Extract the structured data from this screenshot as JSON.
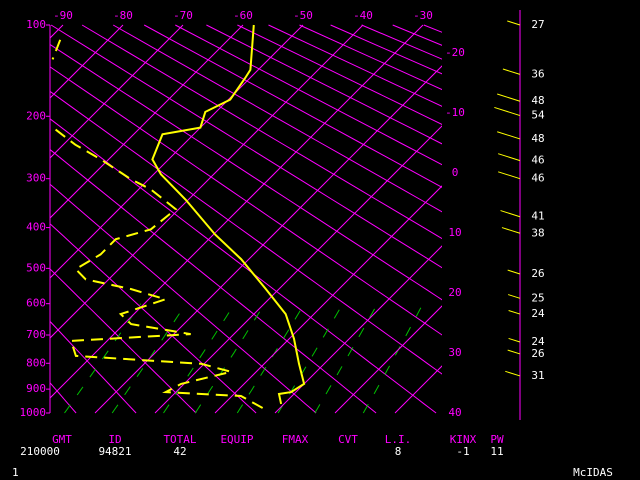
{
  "chart_data": {
    "type": "skewt",
    "ylim": [
      1000,
      100
    ],
    "yticks": [
      100,
      200,
      300,
      400,
      500,
      600,
      700,
      800,
      900,
      1000
    ],
    "xticks": [
      -90,
      -80,
      -70,
      -60,
      -50,
      -40,
      -30,
      -20,
      -10,
      0,
      10,
      20,
      30,
      40
    ],
    "axis_color": "#ff00ff",
    "series": [
      {
        "color": "#ffff00",
        "dashed": false,
        "pressure": [
          100,
          143,
          152,
          178,
          194,
          216,
          226,
          266,
          292,
          340,
          416,
          476,
          557,
          632,
          713,
          802,
          879,
          912,
          920,
          961
        ],
        "values": [
          -58.2,
          -51.3,
          -50.8,
          -49.7,
          -51.8,
          -50,
          -55.2,
          -52.7,
          -48.8,
          -40.5,
          -29.7,
          -21.3,
          -12.2,
          -4.7,
          0.8,
          5.8,
          10,
          9.2,
          7.5,
          9.5
        ]
      },
      {
        "color": "#ffff00",
        "dashed": true,
        "pressure": [
          113,
          132,
          null,
          219,
          242,
          266,
          301,
          320,
          360,
          404,
          427,
          464,
          502,
          530,
          557,
          587,
          632,
          664,
          697,
          720,
          773,
          802,
          832,
          879,
          912,
          928,
          985
        ],
        "values": [
          -88,
          -86,
          null,
          -73.8,
          -68,
          -61.3,
          -53,
          -48,
          -40.5,
          -41.3,
          -45.5,
          -45.5,
          -47.2,
          -43.8,
          -34.7,
          -27.2,
          -32.2,
          -28.8,
          -17.2,
          -36,
          -32.7,
          -10.5,
          -4.2,
          -10.5,
          -11.7,
          1.5,
          7.8
        ]
      }
    ],
    "winds": {
      "color": "#ffff00",
      "pressure": [
        100,
        148,
        180,
        199,
        233,
        268,
        300,
        376,
        413,
        515,
        584,
        632,
        724,
        766,
        848
      ],
      "speed": [
        27,
        36,
        48,
        54,
        48,
        46,
        46,
        41,
        38,
        26,
        25,
        24,
        24,
        26,
        31
      ]
    },
    "indices": [
      {
        "label": "GMT",
        "value": 210000
      },
      {
        "label": "ID",
        "value": 94821
      },
      {
        "label": "TOTAL",
        "value": 42
      },
      {
        "label": "EQUIP"
      },
      {
        "label": "FMAX"
      },
      {
        "label": "CVT"
      },
      {
        "label": "L.I.",
        "value": 8
      },
      {
        "label": "KINX",
        "value": -1
      },
      {
        "label": "PW",
        "value": 11
      }
    ],
    "frame_number": "1",
    "software": "McIDAS"
  }
}
